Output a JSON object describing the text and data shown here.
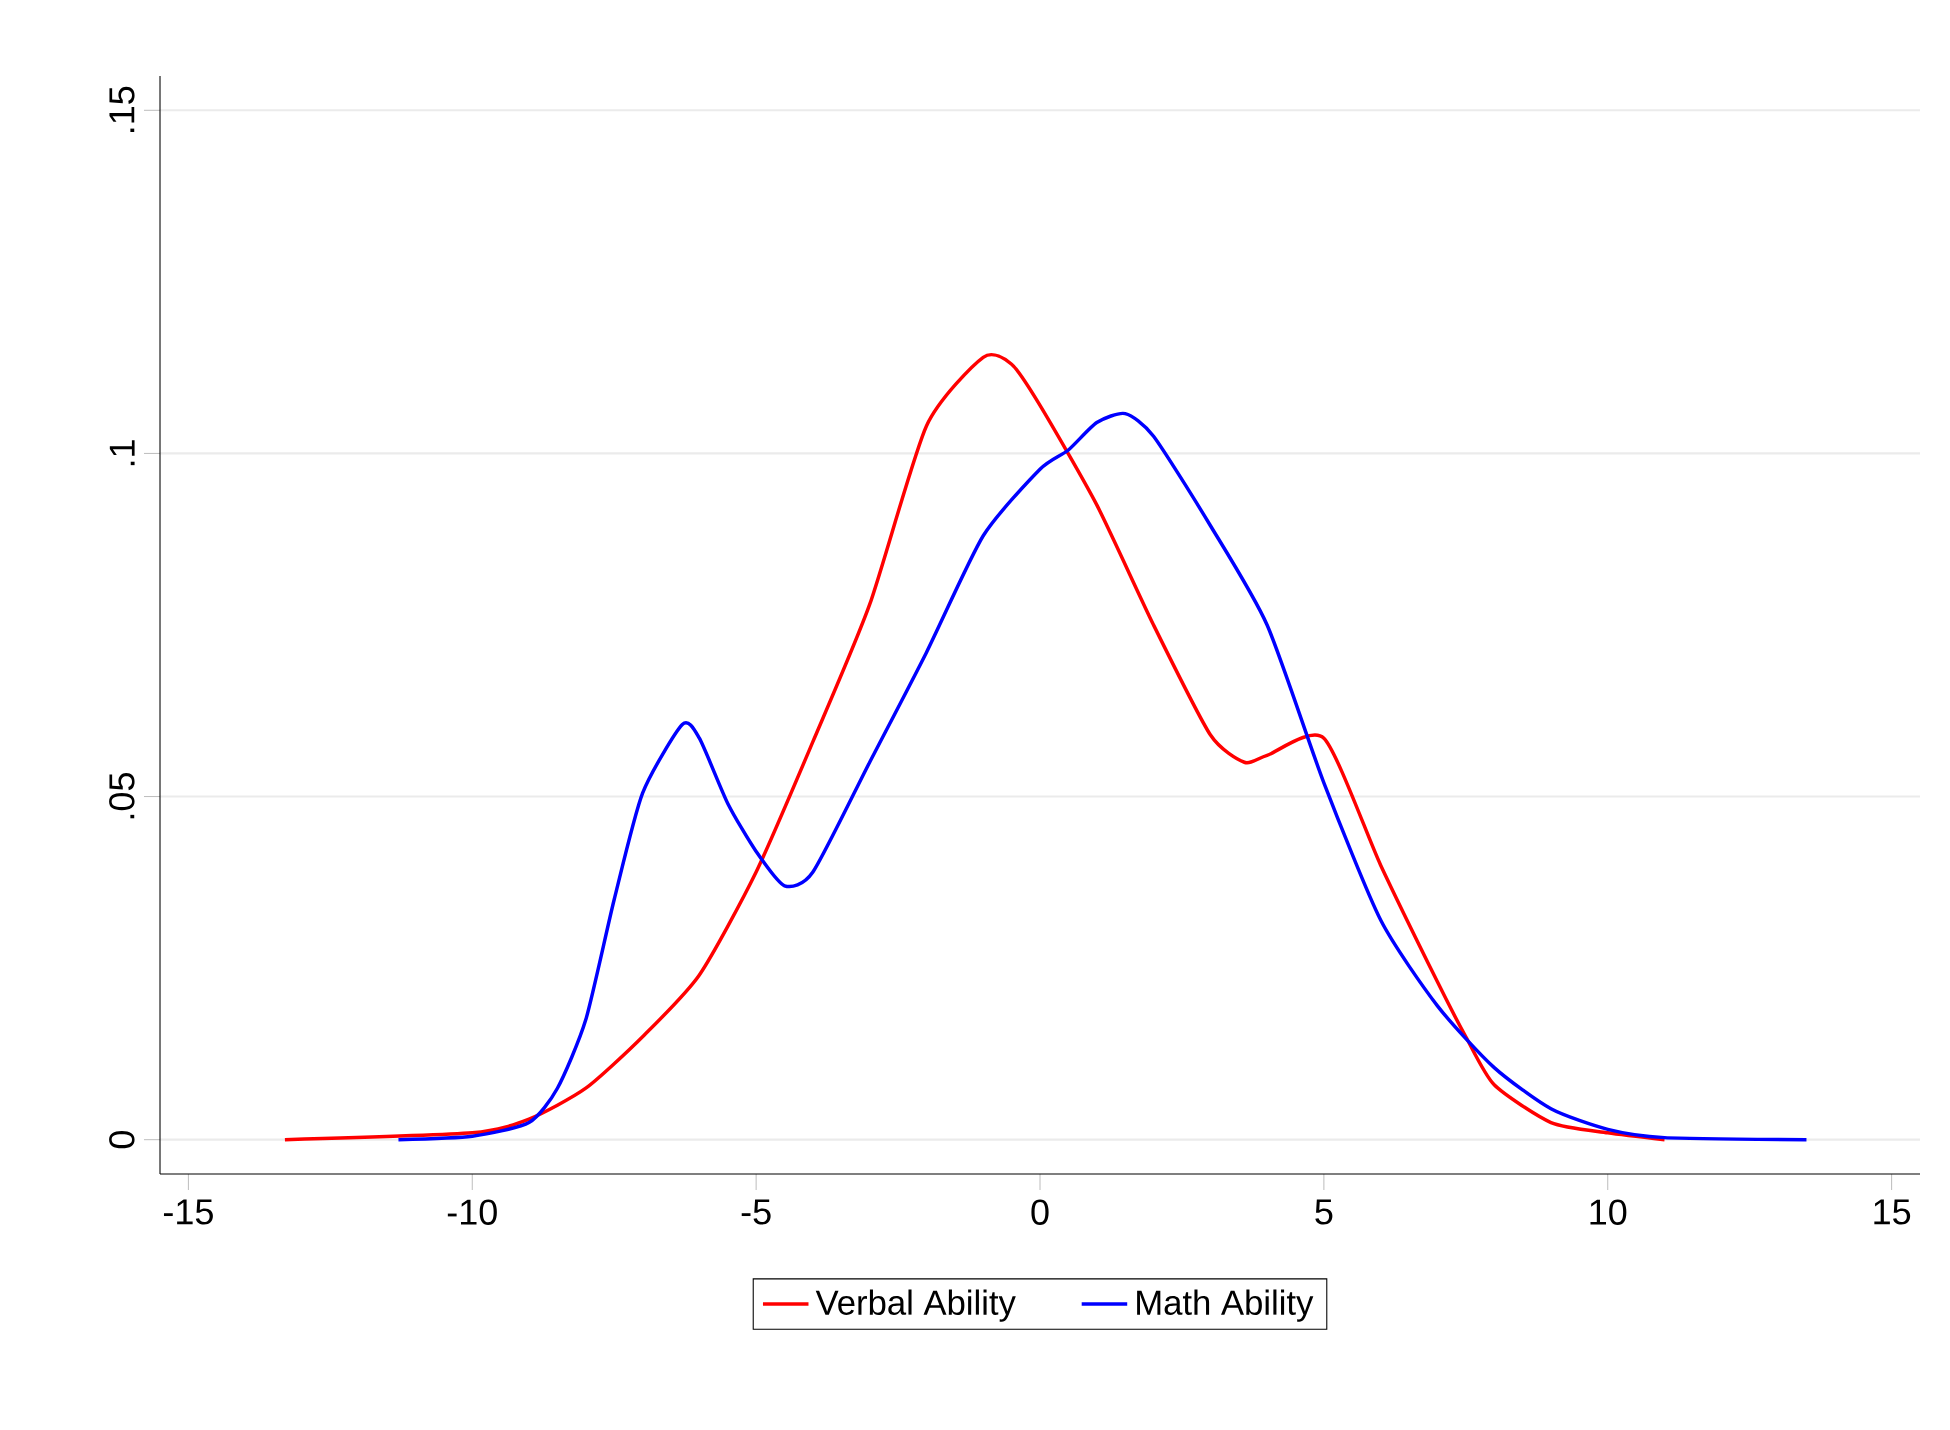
{
  "chart_data": {
    "type": "line",
    "x": [
      -13.3,
      -10,
      -9,
      -8,
      -7,
      -6,
      -5,
      -4,
      -3,
      -2,
      -1,
      -0.5,
      0,
      1,
      2,
      3,
      3.6,
      4,
      5,
      6,
      7,
      7.5,
      8,
      9,
      10,
      11
    ],
    "xlim": [
      -15.5,
      15.5
    ],
    "ylim": [
      -0.005,
      0.155
    ],
    "xticks": [
      -15,
      -10,
      -5,
      0,
      5,
      10,
      15
    ],
    "yticks": [
      0,
      {
        "value": 0.05,
        "label": ".05"
      },
      {
        "value": 0.1,
        "label": ".1"
      },
      {
        "value": 0.15,
        "label": ".15"
      }
    ],
    "grid": "y",
    "legend": "bottom",
    "line_style": "solid",
    "marker": "none",
    "series": [
      {
        "name": "Verbal Ability",
        "color": "#ff0000",
        "values": [
          0,
          0.001,
          0.003,
          0.0075,
          0.015,
          0.024,
          0.039,
          0.058,
          0.078,
          0.104,
          0.114,
          0.113,
          0.107,
          0.0925,
          0.075,
          0.059,
          0.055,
          0.056,
          0.0585,
          0.04,
          0.023,
          0.015,
          0.008,
          0.0025,
          0.001,
          0
        ]
      },
      {
        "name": "Math Ability",
        "color": "#0000ff",
        "x": [
          -11.3,
          -10,
          -9,
          -8.5,
          -8,
          -7.5,
          -7,
          -6.3,
          -6,
          -5.5,
          -5,
          -4.5,
          -4,
          -3,
          -2,
          -1,
          0,
          0.5,
          1,
          1.5,
          2,
          3,
          4,
          5,
          6,
          7,
          8,
          9,
          10,
          11,
          13.5
        ],
        "values": [
          0,
          0.0005,
          0.0025,
          0.0075,
          0.0175,
          0.035,
          0.0505,
          0.0605,
          0.0585,
          0.049,
          0.042,
          0.037,
          0.039,
          0.055,
          0.071,
          0.088,
          0.0977,
          0.1005,
          0.1045,
          0.1058,
          0.1025,
          0.0895,
          0.075,
          0.052,
          0.032,
          0.0195,
          0.0105,
          0.0045,
          0.0015,
          0.0003,
          0
        ]
      }
    ]
  }
}
